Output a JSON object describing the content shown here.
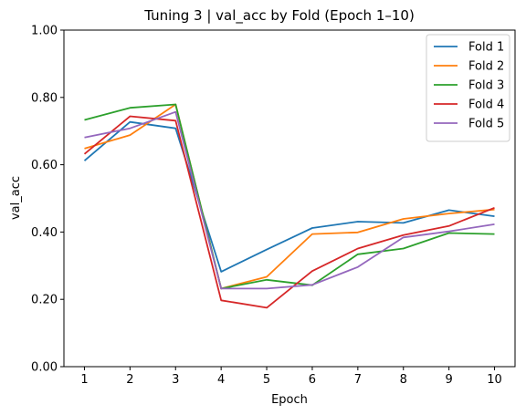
{
  "chart_data": {
    "type": "line",
    "title": "Tuning 3 | val_acc by Fold (Epoch 1–10)",
    "xlabel": "Epoch",
    "ylabel": "val_acc",
    "x": [
      1,
      2,
      3,
      4,
      5,
      6,
      7,
      8,
      9,
      10
    ],
    "x_tick_labels": [
      "1",
      "2",
      "3",
      "4",
      "5",
      "6",
      "7",
      "8",
      "9",
      "10"
    ],
    "ylim": [
      0,
      1
    ],
    "y_ticks": [
      0,
      0.2,
      0.4,
      0.6,
      0.8,
      1.0
    ],
    "y_tick_labels": [
      "0.00",
      "0.20",
      "0.40",
      "0.60",
      "0.80",
      "1.00"
    ],
    "grid": false,
    "legend_position": "top-right",
    "series": [
      {
        "name": "Fold 1",
        "color": "#1f77b4",
        "values": [
          0.612,
          0.727,
          0.708,
          0.282,
          0.348,
          0.412,
          0.431,
          0.427,
          0.465,
          0.447
        ]
      },
      {
        "name": "Fold 2",
        "color": "#ff7f0e",
        "values": [
          0.648,
          0.688,
          0.779,
          0.232,
          0.267,
          0.394,
          0.399,
          0.439,
          0.455,
          0.467
        ]
      },
      {
        "name": "Fold 3",
        "color": "#2ca02c",
        "values": [
          0.733,
          0.769,
          0.779,
          0.232,
          0.258,
          0.242,
          0.334,
          0.351,
          0.397,
          0.394
        ]
      },
      {
        "name": "Fold 4",
        "color": "#d62728",
        "values": [
          0.632,
          0.744,
          0.731,
          0.197,
          0.175,
          0.284,
          0.351,
          0.391,
          0.418,
          0.472
        ]
      },
      {
        "name": "Fold 5",
        "color": "#9467bd",
        "values": [
          0.681,
          0.708,
          0.757,
          0.232,
          0.232,
          0.243,
          0.296,
          0.384,
          0.402,
          0.423
        ]
      }
    ]
  }
}
